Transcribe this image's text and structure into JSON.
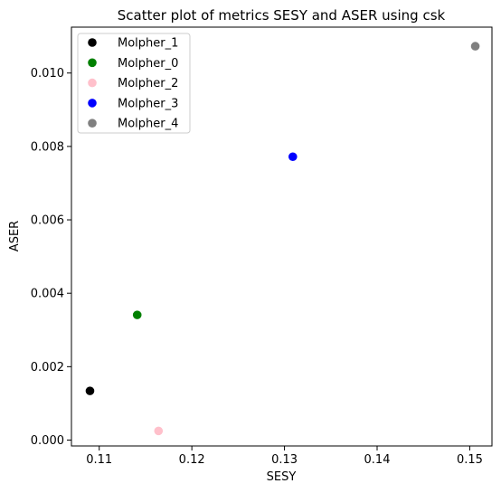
{
  "chart_data": {
    "type": "scatter",
    "title": "Scatter plot of metrics SESY and ASER using csk",
    "xlabel": "SESY",
    "ylabel": "ASER",
    "xlim": [
      0.107,
      0.1524
    ],
    "ylim": [
      -0.00016,
      0.01125
    ],
    "xticks": [
      "0.11",
      "0.12",
      "0.13",
      "0.14",
      "0.15"
    ],
    "xtick_values": [
      0.11,
      0.12,
      0.13,
      0.14,
      0.15
    ],
    "yticks": [
      "0.000",
      "0.002",
      "0.004",
      "0.006",
      "0.008",
      "0.010"
    ],
    "ytick_values": [
      0.0,
      0.002,
      0.004,
      0.006,
      0.008,
      0.01
    ],
    "grid": false,
    "legend_position": "top-left",
    "series": [
      {
        "name": "Molpher_1",
        "color": "#000000",
        "x": 0.109,
        "y": 0.00134
      },
      {
        "name": "Molpher_0",
        "color": "#008000",
        "x": 0.1141,
        "y": 0.00341
      },
      {
        "name": "Molpher_2",
        "color": "#ffc0cb",
        "x": 0.1164,
        "y": 0.00025
      },
      {
        "name": "Molpher_3",
        "color": "#0000ff",
        "x": 0.1309,
        "y": 0.00772
      },
      {
        "name": "Molpher_4",
        "color": "#808080",
        "x": 0.1506,
        "y": 0.01073
      }
    ]
  }
}
